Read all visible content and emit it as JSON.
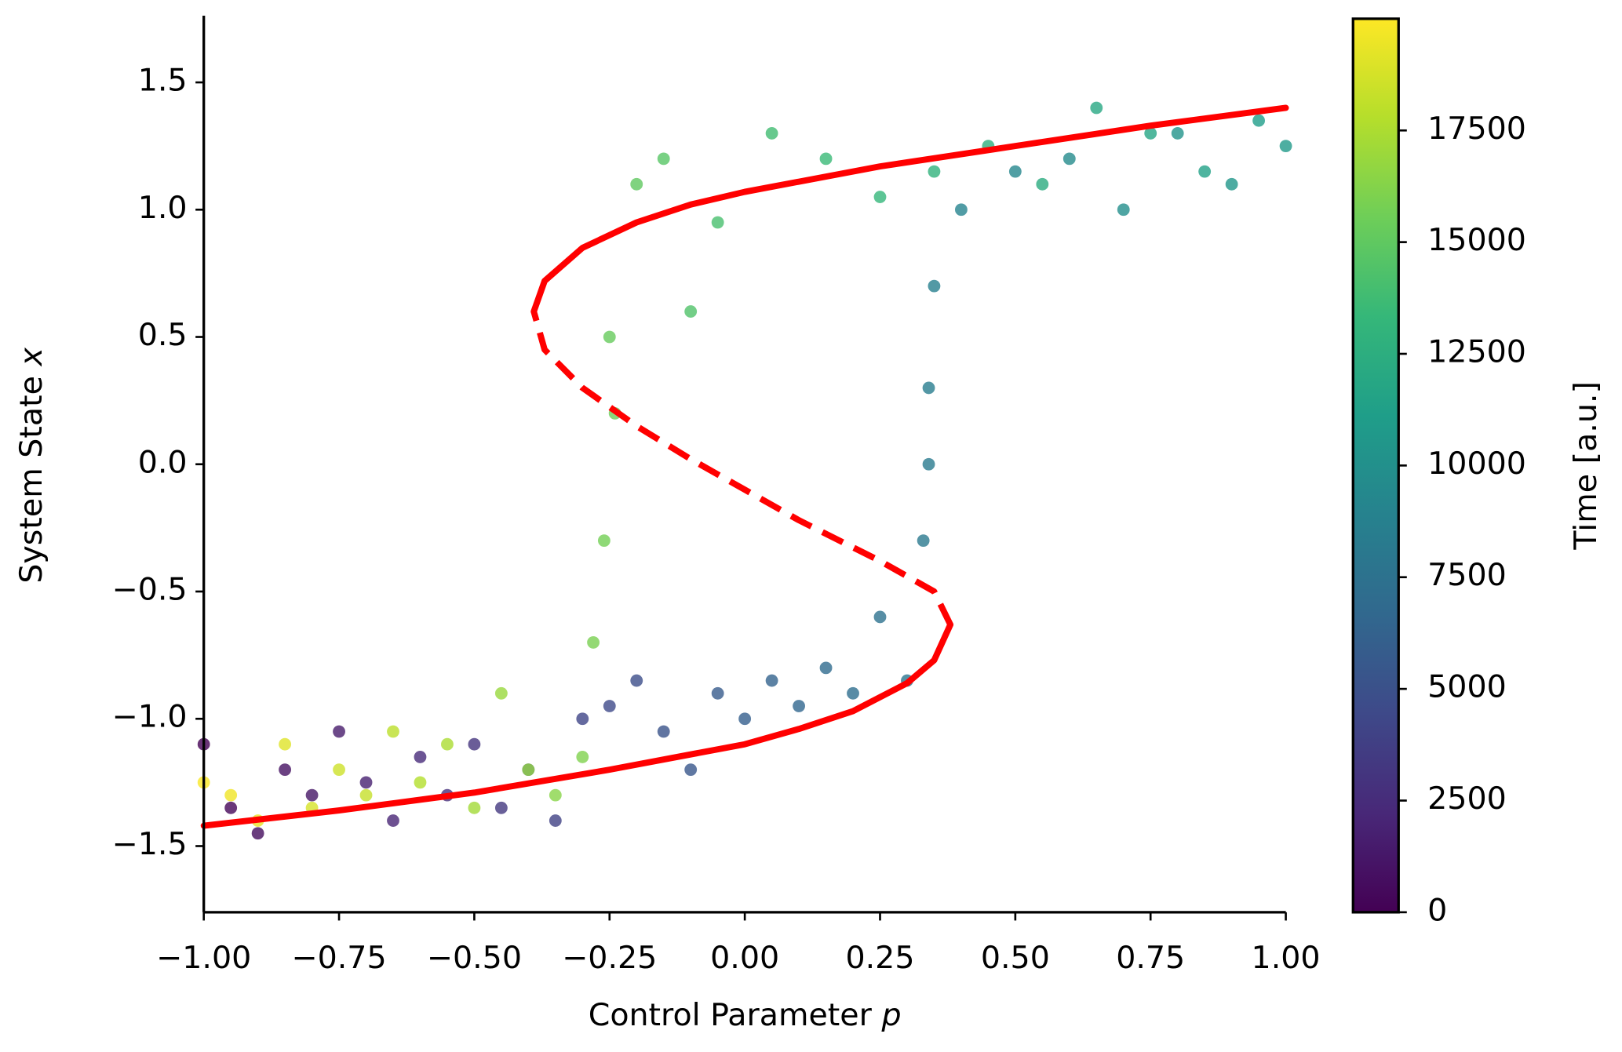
{
  "chart_data": {
    "type": "scatter",
    "xlabel": "Control Parameter",
    "xlabel_symbol": "p",
    "ylabel": "System State",
    "ylabel_symbol": "x",
    "xlim": [
      -1,
      1
    ],
    "xticks": [
      {
        "value": -1,
        "label": "−1.00"
      },
      {
        "value": -0.75,
        "label": "−0.75"
      },
      {
        "value": -0.5,
        "label": "−0.50"
      },
      {
        "value": -0.25,
        "label": "−0.25"
      },
      {
        "value": 0,
        "label": "0.00"
      },
      {
        "value": 0.25,
        "label": "0.25"
      },
      {
        "value": 0.5,
        "label": "0.50"
      },
      {
        "value": 0.75,
        "label": "0.75"
      },
      {
        "value": 1,
        "label": "1.00"
      }
    ],
    "ylim": [
      -1.76,
      1.75
    ],
    "yticks": [
      {
        "value": -1.5,
        "label": "−1.5"
      },
      {
        "value": -1,
        "label": "−1.0"
      },
      {
        "value": -0.5,
        "label": "−0.5"
      },
      {
        "value": 0,
        "label": "0.0"
      },
      0.5,
      {
        "value": 1,
        "label": "1.0"
      },
      1.5
    ],
    "colormap": "viridis",
    "colorbar": {
      "label": "Time [a.u.]",
      "clim": [
        0,
        20000
      ],
      "ticks": [
        0,
        2500,
        5000,
        7500,
        10000,
        12500,
        15000,
        17500
      ]
    },
    "points": {
      "x": [
        -1,
        -0.95,
        -0.9,
        -0.85,
        -0.8,
        -0.75,
        -0.7,
        -0.65,
        -0.6,
        -0.55,
        -0.5,
        -0.45,
        -0.4,
        -0.35,
        -0.3,
        -0.25,
        -0.2,
        -0.15,
        -0.1,
        -0.05,
        0,
        0.05,
        0.1,
        0.15,
        0.2,
        0.25,
        0.3,
        0.33,
        0.34,
        0.34,
        0.35,
        0.4,
        0.5,
        0.6,
        0.7,
        0.8,
        0.9,
        1.0,
        0.95,
        0.85,
        0.75,
        0.65,
        0.55,
        0.45,
        0.35,
        0.25,
        0.15,
        0.05,
        -0.05,
        -0.1,
        -0.15,
        -0.2,
        -0.25,
        -0.24,
        -0.26,
        -0.28,
        -0.3,
        -0.35,
        -0.4,
        -0.45,
        -0.5,
        -0.55,
        -0.6,
        -0.65,
        -0.7,
        -0.75,
        -0.8,
        -0.85,
        -0.9,
        -0.95,
        -1.0
      ],
      "values": [
        -1.1,
        -1.35,
        -1.45,
        -1.2,
        -1.3,
        -1.05,
        -1.25,
        -1.4,
        -1.15,
        -1.3,
        -1.1,
        -1.35,
        -1.2,
        -1.4,
        -1.0,
        -0.95,
        -0.85,
        -1.05,
        -1.2,
        -0.9,
        -1.0,
        -0.85,
        -0.95,
        -0.8,
        -0.9,
        -0.6,
        -0.85,
        -0.3,
        0.0,
        0.3,
        0.7,
        1.0,
        1.15,
        1.2,
        1.0,
        1.3,
        1.1,
        1.25,
        1.35,
        1.15,
        1.3,
        1.4,
        1.1,
        1.25,
        1.15,
        1.05,
        1.2,
        1.3,
        0.95,
        0.6,
        1.2,
        1.1,
        0.5,
        0.2,
        -0.3,
        -0.7,
        -1.15,
        -1.3,
        -1.2,
        -0.9,
        -1.35,
        -1.1,
        -1.25,
        -1.05,
        -1.3,
        -1.2,
        -1.35,
        -1.1,
        -1.4,
        -1.3,
        -1.25
      ],
      "time": [
        0,
        300,
        600,
        900,
        1200,
        1500,
        1800,
        2100,
        2400,
        2700,
        3000,
        3300,
        3600,
        3900,
        4200,
        4500,
        4800,
        5100,
        5400,
        5700,
        6000,
        6300,
        6600,
        6900,
        7200,
        7500,
        7800,
        8100,
        8300,
        8500,
        8700,
        9000,
        9300,
        9600,
        9900,
        10200,
        10500,
        10800,
        11100,
        11400,
        11700,
        12000,
        12300,
        12600,
        12900,
        13200,
        13500,
        13800,
        14100,
        14400,
        14700,
        15000,
        15300,
        15500,
        15700,
        15900,
        16100,
        16370,
        16640,
        16910,
        17180,
        17450,
        17720,
        17990,
        18260,
        18530,
        18800,
        19070,
        19340,
        19610,
        19880
      ]
    },
    "series": [
      {
        "color": "#ff0000",
        "linestyle": "solid",
        "x": [
          -1,
          -0.75,
          -0.5,
          -0.25,
          0,
          0.1,
          0.2,
          0.3,
          0.35,
          0.38
        ],
        "values": [
          -1.42,
          -1.36,
          -1.29,
          -1.2,
          -1.1,
          -1.04,
          -0.97,
          -0.86,
          -0.77,
          -0.63
        ]
      },
      {
        "color": "#ff0000",
        "linestyle": "dashed",
        "x": [
          0.38,
          0.35,
          0.25,
          0.1,
          0,
          -0.1,
          -0.2,
          -0.3,
          -0.37,
          -0.39
        ],
        "values": [
          -0.63,
          -0.5,
          -0.38,
          -0.22,
          -0.1,
          0.02,
          0.15,
          0.3,
          0.45,
          0.6
        ]
      },
      {
        "color": "#ff0000",
        "linestyle": "solid",
        "x": [
          -0.39,
          -0.37,
          -0.3,
          -0.2,
          -0.1,
          0,
          0.25,
          0.5,
          0.75,
          1
        ],
        "values": [
          0.6,
          0.72,
          0.85,
          0.95,
          1.02,
          1.07,
          1.17,
          1.25,
          1.33,
          1.4
        ]
      }
    ]
  }
}
